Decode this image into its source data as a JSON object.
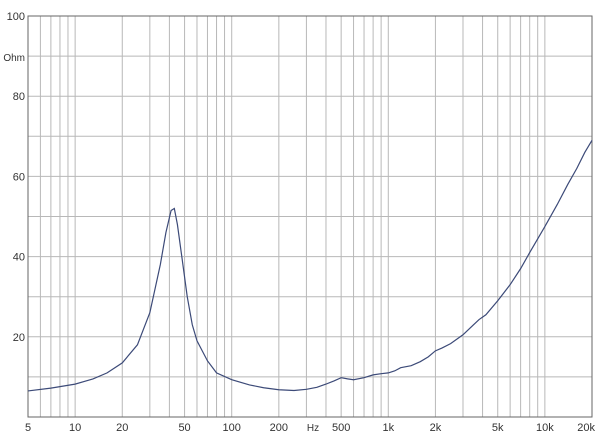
{
  "chart_data": {
    "type": "line",
    "x_scale": "log",
    "xlim": [
      5,
      20000
    ],
    "ylim": [
      0,
      100
    ],
    "grid": true,
    "x_unit_label": "Hz",
    "y_unit_label": "Ohm",
    "x_ticks": [
      {
        "value": 5,
        "label": "5"
      },
      {
        "value": 10,
        "label": "10"
      },
      {
        "value": 20,
        "label": "20"
      },
      {
        "value": 50,
        "label": "50"
      },
      {
        "value": 100,
        "label": "100"
      },
      {
        "value": 200,
        "label": "200"
      },
      {
        "value": 500,
        "label": "500"
      },
      {
        "value": 1000,
        "label": "1k"
      },
      {
        "value": 2000,
        "label": "2k"
      },
      {
        "value": 5000,
        "label": "5k"
      },
      {
        "value": 10000,
        "label": "10k"
      },
      {
        "value": 20000,
        "label": "20k"
      }
    ],
    "y_ticks": [
      {
        "value": 20,
        "label": "20"
      },
      {
        "value": 40,
        "label": "40"
      },
      {
        "value": 60,
        "label": "60"
      },
      {
        "value": 80,
        "label": "80"
      },
      {
        "value": 100,
        "label": "100"
      }
    ],
    "colors": {
      "line": "#3c4a78",
      "grid": "#b8b8b8",
      "axis": "#666666"
    },
    "series": [
      {
        "x": [
          5,
          7,
          10,
          13,
          16,
          20,
          25,
          30,
          35,
          38,
          41,
          43,
          45,
          48,
          52,
          56,
          60,
          70,
          80,
          100,
          130,
          160,
          200,
          250,
          300,
          350,
          400,
          450,
          500,
          550,
          600,
          700,
          800,
          900,
          1000,
          1100,
          1200,
          1400,
          1600,
          1800,
          2000,
          2200,
          2500,
          3000,
          3500,
          3800,
          4200,
          5000,
          6000,
          7000,
          8000,
          10000,
          12000,
          14000,
          16000,
          18000,
          20000
        ],
        "y": [
          6.5,
          7.2,
          8.2,
          9.5,
          11,
          13.5,
          18,
          26,
          38,
          46,
          51.5,
          52,
          48,
          40,
          30,
          23,
          19,
          14,
          11,
          9.3,
          8,
          7.3,
          6.8,
          6.6,
          6.9,
          7.4,
          8.2,
          9,
          9.8,
          9.5,
          9.3,
          9.8,
          10.5,
          10.8,
          11,
          11.5,
          12.3,
          12.8,
          13.8,
          15,
          16.5,
          17.2,
          18.3,
          20.5,
          23,
          24.3,
          25.5,
          29,
          33,
          37,
          41,
          47.5,
          53,
          58,
          62,
          66,
          69
        ]
      }
    ]
  }
}
